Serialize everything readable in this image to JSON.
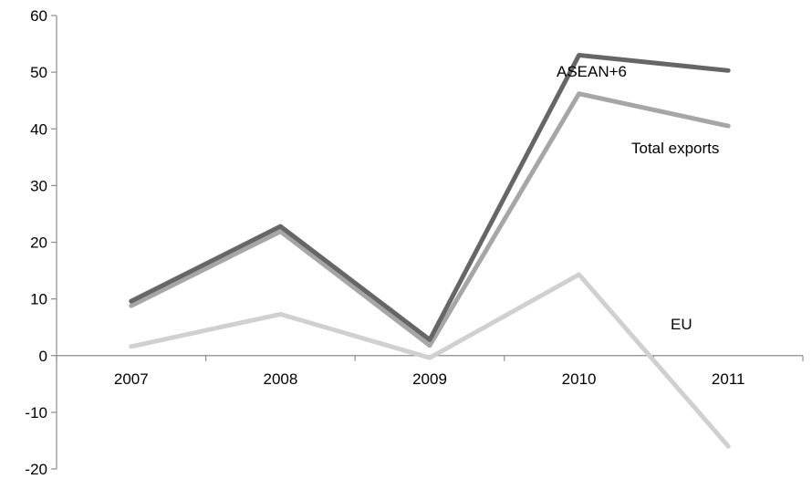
{
  "chart_data": {
    "type": "line",
    "title": "",
    "xlabel": "",
    "ylabel": "",
    "categories": [
      "2007",
      "2008",
      "2009",
      "2010",
      "2011"
    ],
    "ylim": [
      -20,
      60
    ],
    "yticks": [
      -20,
      -10,
      0,
      10,
      20,
      30,
      40,
      50,
      60
    ],
    "ytick_labels": [
      "-20",
      "-10",
      "0",
      "10",
      "20",
      "30",
      "40",
      "50",
      "60"
    ],
    "grid": false,
    "series": [
      {
        "name": "ASEAN+6",
        "values": [
          9.6,
          22.8,
          2.8,
          53.0,
          50.3
        ],
        "color": "#666666"
      },
      {
        "name": "Total exports",
        "values": [
          8.8,
          21.9,
          1.8,
          46.2,
          40.5
        ],
        "color": "#a6a6a6"
      },
      {
        "name": "EU",
        "values": [
          1.6,
          7.3,
          -0.4,
          14.3,
          -16.0
        ],
        "color": "#d0d0d0"
      }
    ]
  }
}
